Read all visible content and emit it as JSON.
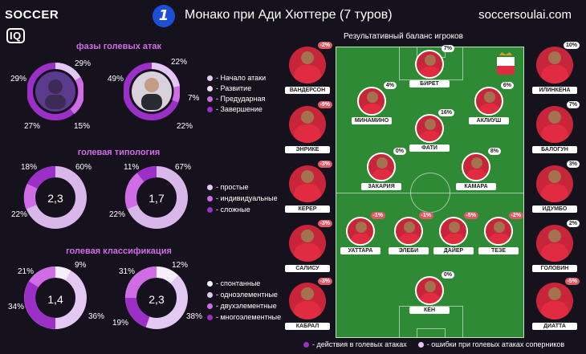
{
  "header": {
    "logo_main": "SOCCER",
    "logo_suffix": "IQ",
    "league_badge": "1",
    "title": "Монако при Ади Хюттере (7 туров)",
    "site": "soccersoulai.com"
  },
  "sections": {
    "phases": "фазы голевых атак",
    "typology": "голевая типология",
    "classification": "голевая классификация"
  },
  "phases_chart": {
    "legend": [
      "- Начало атаки",
      "- Развитие",
      "- Предударная",
      "- Завершение"
    ],
    "left": {
      "top_left": "29%",
      "top_right": "29%",
      "bottom_left": "27%",
      "bottom_right": "15%"
    },
    "right": {
      "top_left": "49%",
      "top_right": "22%",
      "right": "7%",
      "bottom_right": "22%"
    }
  },
  "typology_chart": {
    "legend": [
      "- простые",
      "- индивидуальные",
      "- сложные"
    ],
    "left": {
      "center": "2,3",
      "top_left": "18%",
      "top_right": "60%",
      "bottom_left": "22%"
    },
    "right": {
      "center": "1,7",
      "top_left": "11%",
      "top_right": "67%",
      "bottom_left": "22%"
    }
  },
  "classification_chart": {
    "legend": [
      "- спонтанные",
      "- одноэлементные",
      "- двухэлементные",
      "- многоэлементные"
    ],
    "left": {
      "center": "1,4",
      "top_left": "21%",
      "top_right": "9%",
      "left": "34%",
      "right": "36%"
    },
    "right": {
      "center": "2,3",
      "top_left": "31%",
      "top_right": "12%",
      "left": "19%",
      "right": "38%"
    }
  },
  "pitch": {
    "title": "Результативный баланс игроков",
    "left_side": [
      {
        "name": "ВАНДЕРСОН",
        "value": "-2%"
      },
      {
        "name": "ЭНРИКЕ",
        "value": "-9%"
      },
      {
        "name": "КЕРЕР",
        "value": "-3%"
      },
      {
        "name": "САЛИСУ",
        "value": "-3%"
      },
      {
        "name": "КАБРАЛ",
        "value": "-3%"
      }
    ],
    "right_side": [
      {
        "name": "ИЛИНКЕНА",
        "value": "10%"
      },
      {
        "name": "БАЛОГУН",
        "value": "7%"
      },
      {
        "name": "ИДУМБО",
        "value": "3%"
      },
      {
        "name": "ГОЛОВИН",
        "value": "2%"
      },
      {
        "name": "ДИАТТА",
        "value": "-5%"
      }
    ],
    "on_pitch": [
      {
        "name": "БИРЕТ",
        "value": "7%"
      },
      {
        "name": "МИНАМИНО",
        "value": "4%"
      },
      {
        "name": "АКЛИУШ",
        "value": "6%"
      },
      {
        "name": "ФАТИ",
        "value": "16%"
      },
      {
        "name": "ЗАКАРИЯ",
        "value": "0%"
      },
      {
        "name": "КАМАРА",
        "value": "8%"
      },
      {
        "name": "УАТТАРА",
        "value": "-1%"
      },
      {
        "name": "ЭЛЕБИ",
        "value": "-1%"
      },
      {
        "name": "ДАЙЕР",
        "value": "-5%"
      },
      {
        "name": "ТЕЗЕ",
        "value": "-2%"
      },
      {
        "name": "КЁН",
        "value": "0%"
      }
    ]
  },
  "bottom_legend": {
    "attack": "- действия в голевых атаках",
    "errors": "- ошибки при голевых атаках соперников"
  },
  "colors": {
    "background": "#15121d",
    "accent_purple": "#9b2fc7",
    "light_purple": "#e2c8f2",
    "pitch_green": "#2f8a36"
  }
}
